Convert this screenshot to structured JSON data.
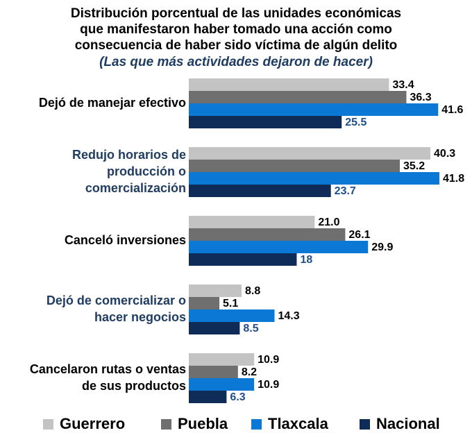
{
  "chart_data": {
    "type": "bar",
    "orientation": "horizontal",
    "title": [
      "Distribución porcentual de las unidades económicas",
      "que manifestaron haber tomado una acción como",
      "consecuencia de haber sido víctima de algún delito"
    ],
    "subtitle": "(Las que más actividades dejaron de hacer)",
    "categories": [
      [
        "Dejó de manejar efectivo"
      ],
      [
        "Redujo horarios de",
        "producción o",
        "comercialización"
      ],
      [
        "Canceló inversiones"
      ],
      [
        "Dejó de comercializar o",
        "hacer negocios"
      ],
      [
        "Cancelaron rutas o ventas",
        "de sus productos"
      ]
    ],
    "category_colors": [
      "#000000",
      "#1f3d63",
      "#000000",
      "#1f3d63",
      "#000000"
    ],
    "series": [
      {
        "name": "Guerrero",
        "color": "#c3c3c3",
        "values": [
          33.4,
          40.3,
          21.0,
          8.8,
          10.9
        ],
        "value_labels": [
          "33.4",
          "40.3",
          "21.0",
          "8.8",
          "10.9"
        ]
      },
      {
        "name": "Puebla",
        "color": "#6f6f6f",
        "values": [
          36.3,
          35.2,
          26.1,
          5.1,
          8.2
        ]
      },
      {
        "name": "Tlaxcala",
        "color": "#0a78d4",
        "values": [
          41.6,
          41.8,
          29.9,
          14.3,
          10.9
        ]
      },
      {
        "name": "Nacional",
        "color": "#0e2c57",
        "values": [
          25.5,
          23.7,
          18.0,
          8.5,
          6.3
        ]
      }
    ],
    "legend": "bottom"
  }
}
